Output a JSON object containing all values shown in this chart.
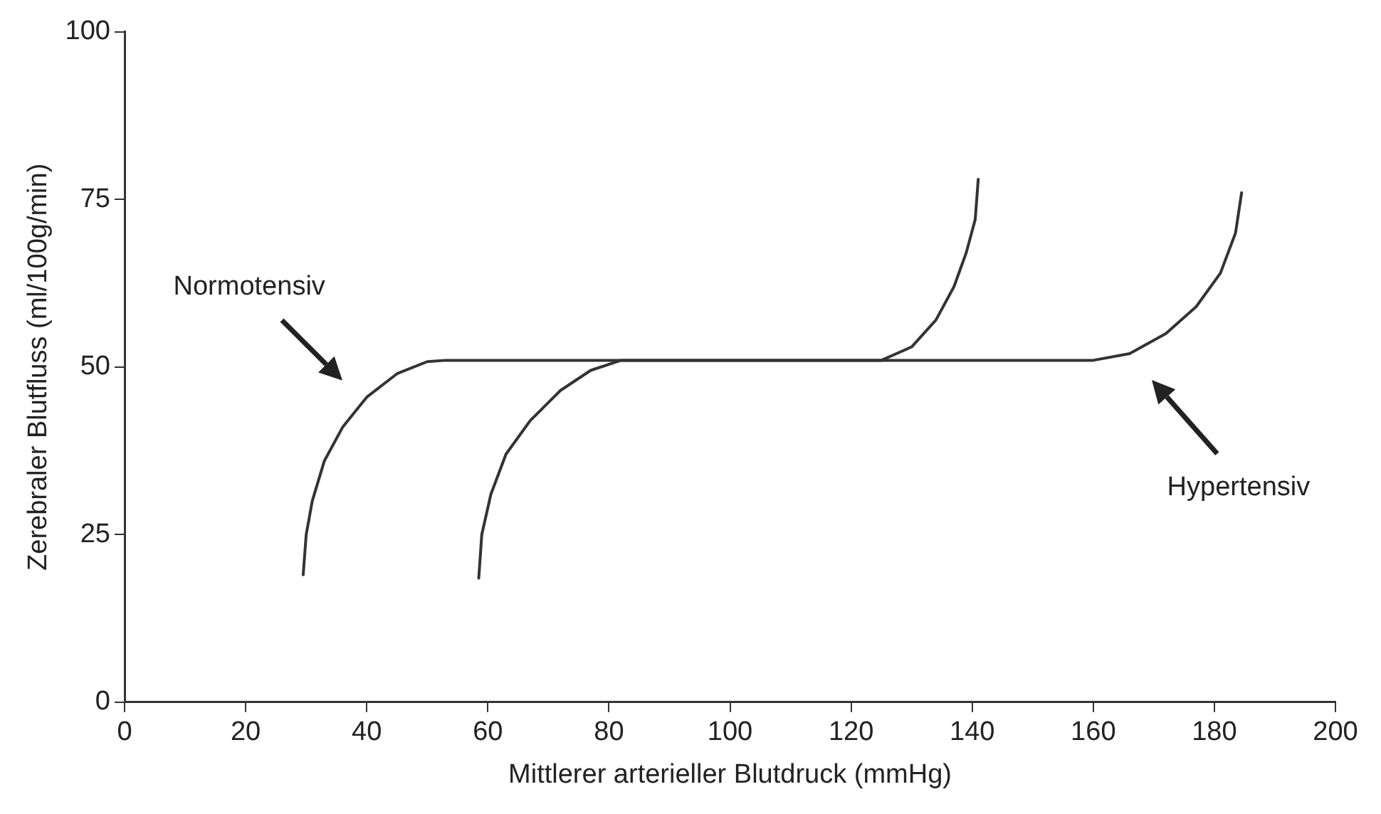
{
  "chart_data": {
    "type": "line",
    "xlabel": "Mittlerer arterieller Blutdruck (mmHg)",
    "ylabel": "Zerebraler Blutfluss (ml/100g/min)",
    "xlim": [
      0,
      200
    ],
    "xticks": [
      0,
      20,
      40,
      60,
      80,
      100,
      120,
      140,
      160,
      180,
      200
    ],
    "ylim": [
      0,
      100
    ],
    "yticks": [
      0,
      25,
      50,
      75,
      100
    ],
    "grid": false,
    "legend": false,
    "marker": "none",
    "line_style": "solid",
    "series": [
      {
        "color": "#333333",
        "x": [
          29.5,
          30,
          31,
          33,
          36,
          40,
          45,
          50,
          53,
          125,
          130,
          134,
          137,
          139,
          140.5,
          141
        ],
        "values": [
          19,
          25,
          30,
          36,
          41,
          45.5,
          49,
          50.8,
          51,
          51,
          53,
          57,
          62,
          67,
          72,
          78
        ]
      },
      {
        "color": "#333333",
        "x": [
          58.5,
          59,
          60.5,
          63,
          67,
          72,
          77,
          82,
          160,
          166,
          172,
          177,
          181,
          183.5,
          184.5
        ],
        "values": [
          18.5,
          25,
          31,
          37,
          42,
          46.5,
          49.5,
          51,
          51,
          52,
          55,
          59,
          64,
          70,
          76
        ]
      }
    ],
    "annotations": [
      "Normotensiv",
      "Hypertensiv"
    ]
  }
}
